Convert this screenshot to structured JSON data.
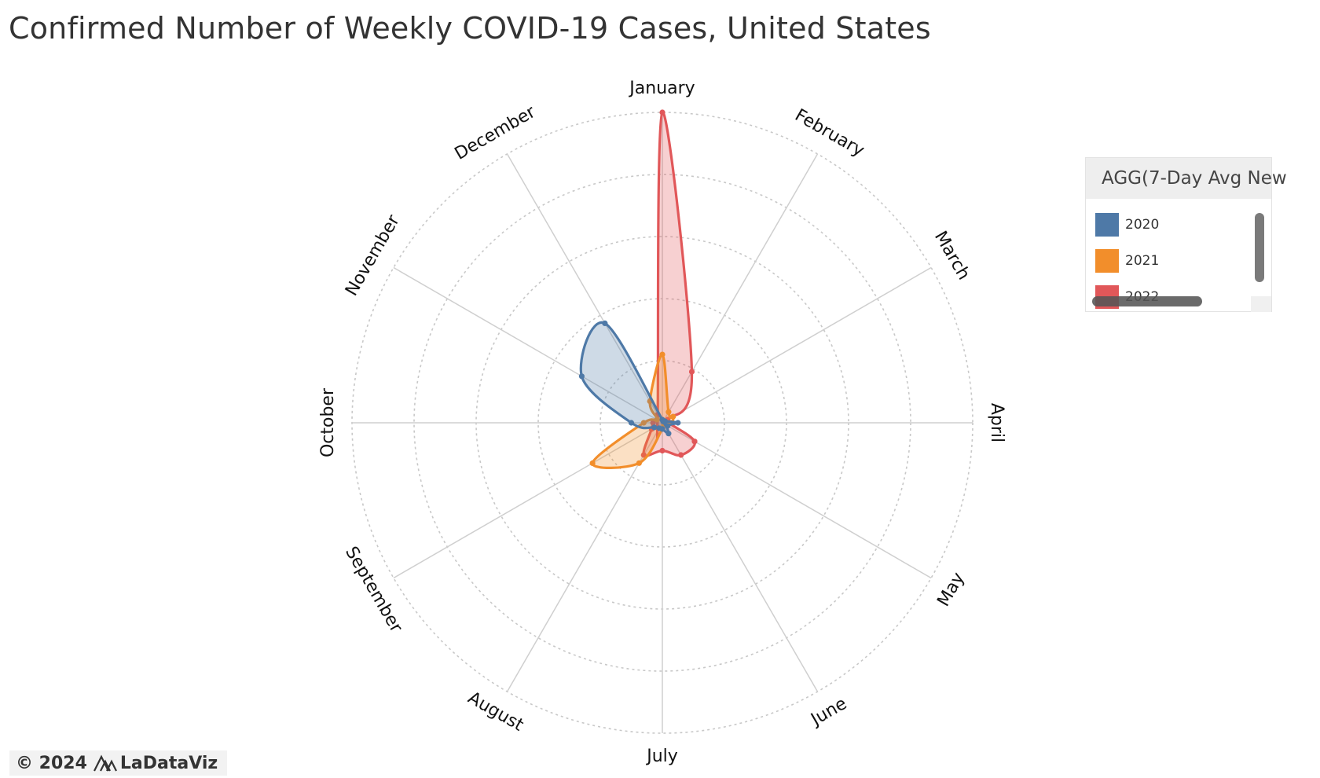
{
  "title": "Confirmed Number of Weekly COVID-19 Cases, United States",
  "chart_data": {
    "type": "radar",
    "title": "Confirmed Number of Weekly COVID-19 Cases, United States",
    "angular_axis": [
      "January",
      "February",
      "March",
      "April",
      "May",
      "June",
      "July",
      "August",
      "September",
      "October",
      "November",
      "December"
    ],
    "radial_scale": {
      "min": 0,
      "max": 100,
      "unit": "relative (no tick labels shown)"
    },
    "grid": true,
    "legend_position": "right",
    "series": [
      {
        "name": "2020",
        "color": "#4e79a7",
        "values": [
          1,
          0.5,
          1,
          5,
          2,
          4,
          2,
          2,
          3,
          10,
          30,
          37
        ]
      },
      {
        "name": "2021",
        "color": "#f28e2b",
        "values": [
          22,
          4,
          4,
          3,
          1,
          1,
          2,
          15,
          26,
          6,
          2,
          8
        ]
      },
      {
        "name": "2022",
        "color": "#e15759",
        "values": [
          100,
          19,
          2,
          2,
          12,
          12,
          9,
          12,
          4,
          3,
          2,
          3
        ]
      }
    ],
    "legend_title": "AGG(7-Day Avg New",
    "legend": [
      "2020",
      "2021",
      "2022"
    ]
  },
  "footer": {
    "copyright": "© 2024",
    "brand": "LaDataViz"
  }
}
